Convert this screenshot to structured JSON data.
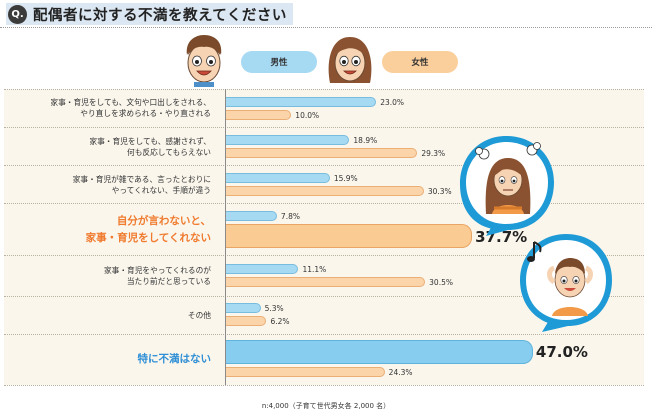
{
  "title": {
    "badge": "Q.",
    "text": "配偶者に対する不満を教えてください"
  },
  "legend": {
    "male": "男性",
    "female": "女性"
  },
  "footnote": "n:4,000（子育て世代男女各 2,000 名）",
  "chart_data": {
    "type": "bar",
    "orientation": "horizontal",
    "unit": "%",
    "categories": [
      "家事・育児をしても、文句や口出しをされる、やり直しを求められる・やり直される",
      "家事・育児をしても、感謝されず、何も反応してもらえない",
      "家事・育児が雑である、言ったとおりにやってくれない、手順が違う",
      "自分が言わないと、家事・育児をしてくれない",
      "家事・育児をやってくれるのが当たり前だと思っている",
      "その他",
      "特に不満はない"
    ],
    "series": [
      {
        "name": "男性",
        "color": "#a6d9f2",
        "values": [
          23.0,
          18.9,
          15.9,
          7.8,
          11.1,
          5.3,
          47.0
        ]
      },
      {
        "name": "女性",
        "color": "#fbd4aa",
        "values": [
          10.0,
          29.3,
          30.3,
          37.7,
          30.5,
          6.2,
          24.3
        ]
      }
    ],
    "value_labels": {
      "male": [
        "23.0%",
        "18.9%",
        "15.9%",
        "7.8%",
        "11.1%",
        "5.3%",
        "47.0%"
      ],
      "female": [
        "10.0%",
        "29.3%",
        "30.3%",
        "37.7%",
        "30.5%",
        "6.2%",
        "24.3%"
      ]
    },
    "xlim": [
      0,
      50
    ],
    "grid": false,
    "legend_position": "top"
  },
  "labels": {
    "r0": [
      "家事・育児をしても、文句や口出しをされる、",
      "やり直しを求められる・やり直される"
    ],
    "r1": [
      "家事・育児をしても、感謝されず、",
      "何も反応してもらえない"
    ],
    "r2": [
      "家事・育児が雑である、言ったとおりに",
      "やってくれない、手順が違う"
    ],
    "r3": [
      "自分が言わないと、",
      "家事・育児をしてくれない"
    ],
    "r4": [
      "家事・育児をやってくれるのが",
      "当たり前だと思っている"
    ],
    "r5": [
      "その他"
    ],
    "r6": [
      "特に不満はない"
    ]
  },
  "icons": [
    "male-face-icon",
    "female-face-icon",
    "annoyed-woman-icon",
    "relaxed-man-icon",
    "music-note-icon"
  ],
  "colors": {
    "accent_orange": "#f07a2e",
    "accent_blue": "#2f8fd6",
    "male_bar": "#a6d9f2",
    "female_bar": "#fbd4aa",
    "bubble_blue": "#1e9ad6",
    "panel": "#faf6ec"
  }
}
